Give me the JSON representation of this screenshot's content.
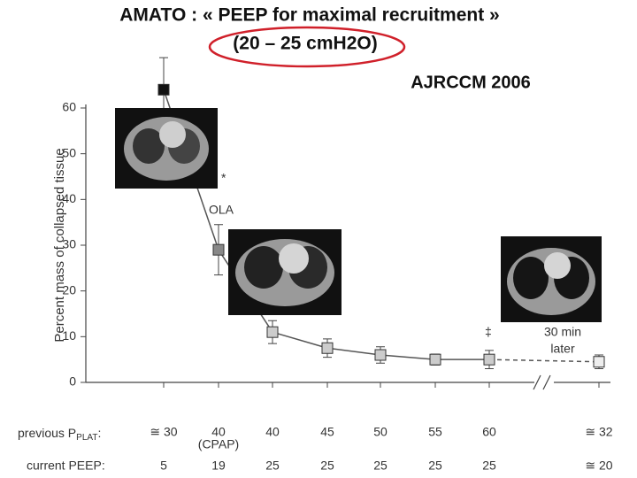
{
  "chart_data": {
    "type": "line",
    "title": "AMATO : « PEEP for maximal recruitment »",
    "subtitle": "(20 – 25 cmH2O)",
    "source": "AJRCCM 2006",
    "y_label": "Percent mass of collapsed tissue",
    "ylim": [
      0,
      70
    ],
    "yticks": [
      0,
      10,
      20,
      30,
      40,
      50,
      60
    ],
    "series": [
      {
        "color": "#555",
        "values": [
          64,
          29,
          11,
          7.5,
          6,
          5,
          5,
          4.5
        ],
        "errors": [
          7,
          5.5,
          2.5,
          2,
          1.8,
          1.2,
          2,
          1.5
        ],
        "marker_colors": [
          "#111",
          "#888",
          "#ccc",
          "#ccc",
          "#ccc",
          "#ccc",
          "#ccc",
          "#eee"
        ]
      }
    ],
    "annotations": [
      "*",
      "OLA",
      "‡",
      "30 min",
      "later"
    ],
    "rows": [
      {
        "label": [
          "previous P",
          "PLAT",
          ":"
        ],
        "cells": [
          "≅ 30",
          "40",
          "40",
          "45",
          "50",
          "55",
          "60",
          "≅ 32"
        ],
        "note": "(CPAP)"
      },
      {
        "label": [
          "current PEEP:"
        ],
        "cells": [
          "5",
          "19",
          "25",
          "25",
          "25",
          "25",
          "25",
          "≅ 20"
        ]
      }
    ]
  }
}
